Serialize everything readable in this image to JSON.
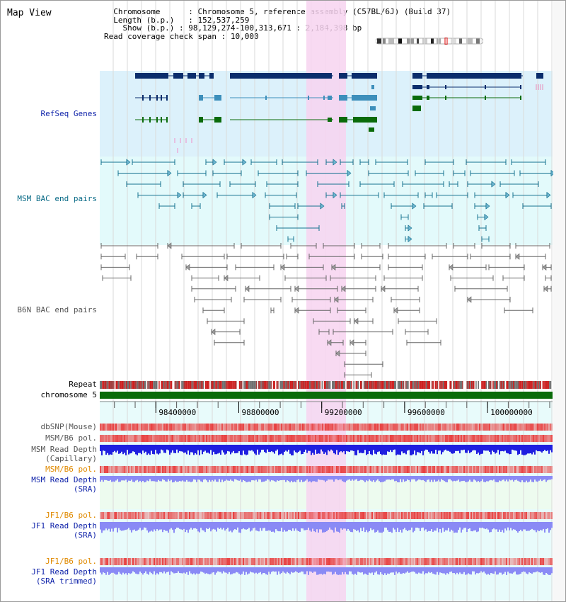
{
  "map_title": "Map View",
  "info": {
    "chromosome_key": "Chromosome",
    "chromosome_value": "Chromosome 5, reference assembly (C57BL/6J) (Build 37)",
    "length_key": "Length (b.p.)",
    "length_value": "152,537,259",
    "show_key": "Show (b.p.)",
    "show_value": "98,129,274-100,313,671 : 2,184,398 bp",
    "coverage_key": "Read coverage check span",
    "coverage_value": "10,000"
  },
  "tracks": {
    "refseq": "RefSeq Genes",
    "msm_bac": "MSM BAC end pairs",
    "b6n_bac": "B6N BAC end pairs",
    "repeat": "Repeat",
    "chromosome": "chromosome 5",
    "dbsnp": "dbSNP(Mouse)",
    "msm_b6_pol_1": "MSM/B6 pol.",
    "msm_depth_cap_1": "MSM Read Depth",
    "msm_depth_cap_2": "(Capillary)",
    "msm_b6_pol_2": "MSM/B6 pol.",
    "msm_depth_sra_1": "MSM Read Depth",
    "msm_depth_sra_2": "(SRA)",
    "jf1_b6_pol_1": "JF1/B6 pol.",
    "jf1_depth_sra_1": "JF1 Read Depth",
    "jf1_depth_sra_2": "(SRA)",
    "jf1_b6_pol_2": "JF1/B6 pol.",
    "jf1_depth_trim_1": "JF1 Read Depth",
    "jf1_depth_trim_2": "(SRA trimmed)"
  },
  "axis": {
    "ticks": [
      {
        "value": 98400000,
        "label": "98400000"
      },
      {
        "value": 98800000,
        "label": "98800000"
      },
      {
        "value": 99200000,
        "label": "99200000"
      },
      {
        "value": 99600000,
        "label": "99600000"
      },
      {
        "value": 100000000,
        "label": "100000000"
      }
    ],
    "range": [
      98129274,
      100313671
    ]
  },
  "highlight_range": [
    99100000,
    99290000
  ],
  "colors": {
    "refseq_bg": "#dcf1fb",
    "msm_bg": "#e3fafb",
    "highlight": "#f7d3f0",
    "gene_dark": "#0a2d6c",
    "gene_mid": "#3d8fbb",
    "gene_green": "#0a6b0a",
    "msm_pair": "#14718f",
    "b6n_pair": "#666666",
    "chromosome_bar": "#0a6b0a",
    "depth_blue": "#1f1fe0",
    "depth_light": "#8a8af5",
    "pol_red": "#e84040"
  }
}
